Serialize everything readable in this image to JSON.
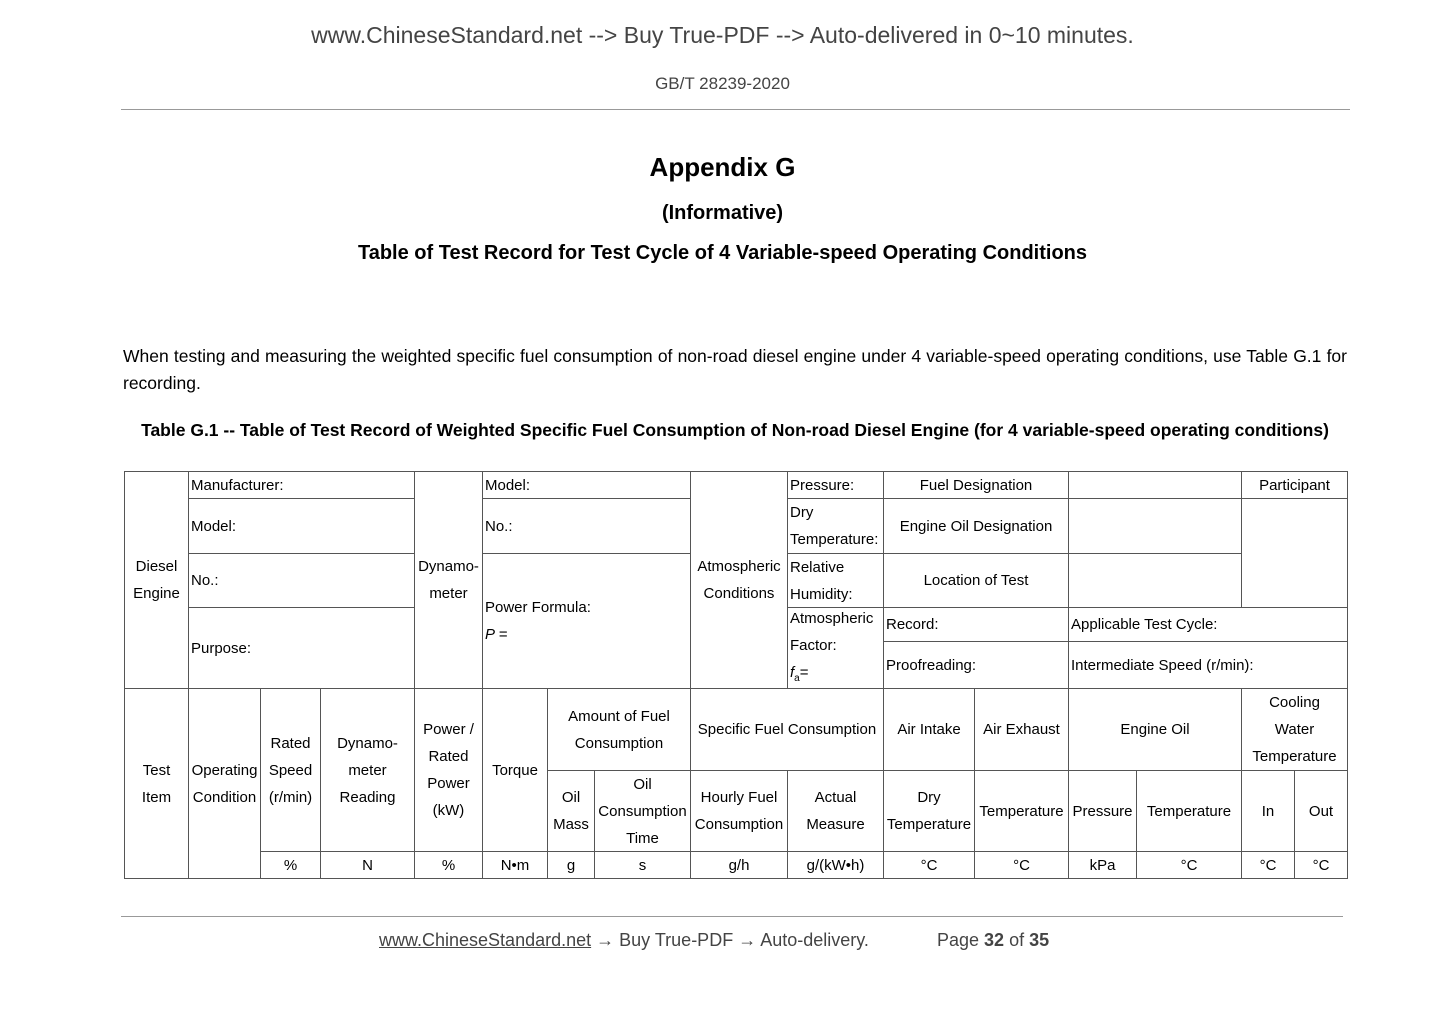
{
  "header": {
    "banner": "www.ChineseStandard.net --> Buy True-PDF --> Auto-delivered in 0~10 minutes.",
    "standard": "GB/T 28239-2020"
  },
  "appendix": {
    "title": "Appendix G",
    "type": "(Informative)",
    "subtitle": "Table of Test Record for Test Cycle of 4 Variable-speed Operating Conditions"
  },
  "body": {
    "paragraph": "When testing and measuring the weighted specific fuel consumption of non-road diesel engine under 4 variable-speed operating conditions, use Table G.1 for recording."
  },
  "table": {
    "caption": "Table G.1 -- Table of Test Record of Weighted Specific Fuel Consumption of Non-road Diesel Engine (for 4 variable-speed operating conditions)",
    "cells": [
      "Diesel\nEngine",
      "Manufacturer:",
      "Model:",
      "No.:",
      "Purpose:",
      "Dynamo-\nmeter",
      "Model:",
      "No.:",
      "Power Formula:",
      "Atmospheric\nConditions",
      "Pressure:",
      "Dry\nTemperature:",
      "Relative\nHumidity:",
      "Atmospheric\nFactor:",
      "Fuel Designation",
      "Engine Oil Designation",
      "Location of Test",
      "",
      "",
      "",
      "Participant",
      "",
      "Record:",
      "Applicable Test Cycle:",
      "Proofreading:",
      "Intermediate Speed (r/min):",
      "Test\nItem",
      "Operating\nCondition",
      "Rated\nSpeed\n(r/min)",
      "%",
      "Dynamo-\nmeter\nReading",
      "N",
      "Power /\nRated\nPower\n(kW)",
      "%",
      "Torque",
      "N•m",
      "Amount of Fuel\nConsumption",
      "Oil\nMass",
      "g",
      "Oil\nConsumption\nTime",
      "s",
      "Specific Fuel Consumption",
      "Hourly Fuel\nConsumption",
      "g/h",
      "Actual\nMeasure",
      "g/(kW•h)",
      "Air Intake",
      "Dry\nTemperature",
      "°C",
      "Air Exhaust",
      "Temperature",
      "°C",
      "Engine Oil",
      "Pressure",
      "kPa",
      "Temperature",
      "°C",
      "Cooling\nWater\nTemperature",
      "In",
      "°C",
      "Out",
      "°C"
    ],
    "power_formula_eq": "P =",
    "fa_label": "f",
    "fa_sub": "a",
    "fa_eq": "="
  },
  "footer": {
    "link": "www.ChineseStandard.net",
    "arrow1": "→",
    "text1": "Buy True-PDF",
    "arrow2": "→",
    "text2": "Auto-delivery.",
    "page_label": "Page",
    "page": "32",
    "of": "of",
    "total": "35"
  }
}
